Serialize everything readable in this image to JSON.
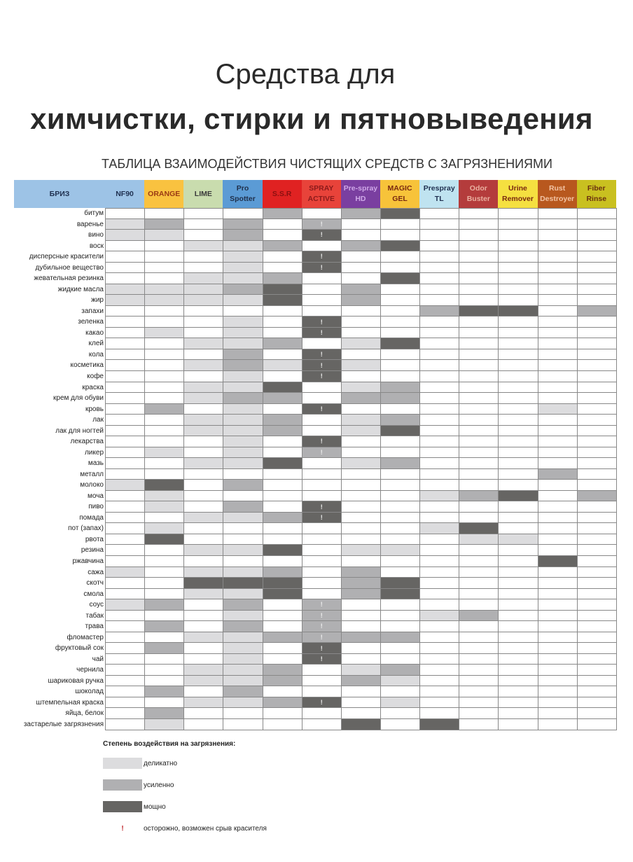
{
  "title_line1": "Средства для",
  "title_line2": "химчистки, стирки и пятновыведения",
  "subtitle": "ТАБЛИЦА ВЗАИМОДЕЙСТВИЯ ЧИСТЯЩИХ СРЕДСТВ С ЗАГРЯЗНЕНИЯМИ",
  "brand_header": "БРИЗ",
  "level_colors": {
    "0": "#ffffff",
    "1": "#dcdcde",
    "2": "#b0b0b2",
    "3": "#666563"
  },
  "warn_symbol": "!",
  "columns": [
    {
      "name": "NF90",
      "bg": "#9dc3e6",
      "fg": "#1f3050"
    },
    {
      "name": "ORANGE",
      "bg": "#f9c240",
      "fg": "#9a3a14"
    },
    {
      "name": "LIME",
      "bg": "#c9dcae",
      "fg": "#3a3a3a"
    },
    {
      "name": "Pro Spotter",
      "bg": "#5b9bd5",
      "fg": "#1f2f4a"
    },
    {
      "name": "S.S.R",
      "bg": "#e02222",
      "fg": "#8a1010"
    },
    {
      "name": "SPRAY ACTIVE",
      "bg": "#e8433a",
      "fg": "#8b1a1a"
    },
    {
      "name": "Pre-spray HD",
      "bg": "#7a3fa0",
      "fg": "#cfa8e8"
    },
    {
      "name": "MAGIC GEL",
      "bg": "#f7c33a",
      "fg": "#7a2a10"
    },
    {
      "name": "Prespray TL",
      "bg": "#bfe3f0",
      "fg": "#1f3050"
    },
    {
      "name": "Odor Buster",
      "bg": "#b43c3c",
      "fg": "#eab0a0"
    },
    {
      "name": "Urine Remover",
      "bg": "#f5e040",
      "fg": "#7a2a10"
    },
    {
      "name": "Rust Destroyer",
      "bg": "#b8581e",
      "fg": "#f3c4a4"
    },
    {
      "name": "Fiber Rinse",
      "bg": "#c9c020",
      "fg": "#6a3010"
    }
  ],
  "rows": [
    {
      "name": "битум",
      "levels": [
        0,
        0,
        0,
        0,
        2,
        0,
        2,
        3,
        0,
        0,
        0,
        0,
        0
      ],
      "warn": false
    },
    {
      "name": "варенье",
      "levels": [
        1,
        2,
        0,
        2,
        0,
        2,
        0,
        0,
        0,
        0,
        0,
        0,
        0
      ],
      "warn": true
    },
    {
      "name": "вино",
      "levels": [
        1,
        1,
        0,
        2,
        0,
        3,
        0,
        0,
        0,
        0,
        0,
        0,
        0
      ],
      "warn": true
    },
    {
      "name": "воск",
      "levels": [
        0,
        0,
        1,
        1,
        2,
        0,
        2,
        3,
        0,
        0,
        0,
        0,
        0
      ],
      "warn": false
    },
    {
      "name": "дисперсные красители",
      "levels": [
        0,
        0,
        0,
        1,
        0,
        3,
        0,
        0,
        0,
        0,
        0,
        0,
        0
      ],
      "warn": true
    },
    {
      "name": "дубильное вещество",
      "levels": [
        0,
        0,
        0,
        1,
        0,
        3,
        0,
        0,
        0,
        0,
        0,
        0,
        0
      ],
      "warn": true
    },
    {
      "name": "жевательная резинка",
      "levels": [
        0,
        0,
        1,
        1,
        2,
        0,
        0,
        3,
        0,
        0,
        0,
        0,
        0
      ],
      "warn": false
    },
    {
      "name": "жидкие масла",
      "levels": [
        1,
        1,
        1,
        2,
        3,
        0,
        2,
        0,
        0,
        0,
        0,
        0,
        0
      ],
      "warn": false
    },
    {
      "name": "жир",
      "levels": [
        1,
        1,
        1,
        1,
        3,
        0,
        2,
        0,
        0,
        0,
        0,
        0,
        0
      ],
      "warn": false
    },
    {
      "name": "запахи",
      "levels": [
        0,
        0,
        0,
        0,
        0,
        0,
        0,
        0,
        2,
        3,
        3,
        0,
        2
      ],
      "warn": false
    },
    {
      "name": "зеленка",
      "levels": [
        0,
        0,
        0,
        1,
        0,
        3,
        0,
        0,
        0,
        0,
        0,
        0,
        0
      ],
      "warn": true
    },
    {
      "name": "какао",
      "levels": [
        0,
        1,
        0,
        1,
        0,
        3,
        0,
        0,
        0,
        0,
        0,
        0,
        0
      ],
      "warn": true
    },
    {
      "name": "клей",
      "levels": [
        0,
        0,
        1,
        1,
        2,
        0,
        1,
        3,
        0,
        0,
        0,
        0,
        0
      ],
      "warn": false
    },
    {
      "name": "кола",
      "levels": [
        0,
        0,
        0,
        2,
        0,
        3,
        0,
        0,
        0,
        0,
        0,
        0,
        0
      ],
      "warn": true
    },
    {
      "name": "косметика",
      "levels": [
        0,
        0,
        1,
        2,
        1,
        3,
        1,
        0,
        0,
        0,
        0,
        0,
        0
      ],
      "warn": true
    },
    {
      "name": "кофе",
      "levels": [
        0,
        0,
        0,
        1,
        0,
        3,
        0,
        0,
        0,
        0,
        0,
        0,
        0
      ],
      "warn": true
    },
    {
      "name": "краска",
      "levels": [
        0,
        0,
        1,
        1,
        3,
        0,
        1,
        2,
        0,
        0,
        0,
        0,
        0
      ],
      "warn": false
    },
    {
      "name": "крем для обуви",
      "levels": [
        0,
        0,
        1,
        2,
        2,
        0,
        2,
        2,
        0,
        0,
        0,
        0,
        0
      ],
      "warn": false
    },
    {
      "name": "кровь",
      "levels": [
        0,
        2,
        0,
        1,
        0,
        3,
        0,
        0,
        0,
        0,
        0,
        1,
        0
      ],
      "warn": true
    },
    {
      "name": "лак",
      "levels": [
        0,
        0,
        1,
        1,
        2,
        0,
        1,
        2,
        0,
        0,
        0,
        0,
        0
      ],
      "warn": false
    },
    {
      "name": "лак для ногтей",
      "levels": [
        0,
        0,
        1,
        1,
        2,
        0,
        1,
        3,
        0,
        0,
        0,
        0,
        0
      ],
      "warn": false
    },
    {
      "name": "лекарства",
      "levels": [
        0,
        0,
        0,
        1,
        0,
        3,
        0,
        0,
        0,
        0,
        0,
        0,
        0
      ],
      "warn": true
    },
    {
      "name": "ликер",
      "levels": [
        0,
        1,
        0,
        1,
        0,
        2,
        0,
        0,
        0,
        0,
        0,
        0,
        0
      ],
      "warn": true
    },
    {
      "name": "мазь",
      "levels": [
        0,
        0,
        1,
        1,
        3,
        0,
        1,
        2,
        0,
        0,
        0,
        0,
        0
      ],
      "warn": false
    },
    {
      "name": "металл",
      "levels": [
        0,
        0,
        0,
        0,
        0,
        0,
        0,
        0,
        0,
        0,
        0,
        2,
        0
      ],
      "warn": false
    },
    {
      "name": "молоко",
      "levels": [
        1,
        3,
        0,
        2,
        0,
        0,
        0,
        0,
        0,
        0,
        0,
        0,
        0
      ],
      "warn": false
    },
    {
      "name": "моча",
      "levels": [
        0,
        1,
        0,
        0,
        0,
        0,
        0,
        0,
        1,
        2,
        3,
        0,
        2
      ],
      "warn": false
    },
    {
      "name": "пиво",
      "levels": [
        0,
        1,
        0,
        2,
        0,
        3,
        0,
        0,
        0,
        0,
        0,
        0,
        0
      ],
      "warn": true
    },
    {
      "name": "помада",
      "levels": [
        0,
        0,
        1,
        1,
        2,
        3,
        0,
        0,
        0,
        0,
        0,
        0,
        0
      ],
      "warn": true
    },
    {
      "name": "пот (запах)",
      "levels": [
        0,
        1,
        0,
        0,
        0,
        0,
        0,
        0,
        1,
        3,
        0,
        0,
        0
      ],
      "warn": false
    },
    {
      "name": "рвота",
      "levels": [
        0,
        3,
        0,
        0,
        0,
        0,
        0,
        0,
        0,
        1,
        1,
        0,
        0
      ],
      "warn": false
    },
    {
      "name": "резина",
      "levels": [
        0,
        0,
        1,
        1,
        3,
        0,
        1,
        1,
        0,
        0,
        0,
        0,
        0
      ],
      "warn": false
    },
    {
      "name": "ржавчина",
      "levels": [
        0,
        0,
        0,
        0,
        0,
        0,
        0,
        0,
        0,
        0,
        0,
        3,
        0
      ],
      "warn": false
    },
    {
      "name": "сажа",
      "levels": [
        1,
        0,
        1,
        1,
        2,
        0,
        2,
        0,
        0,
        0,
        0,
        0,
        0
      ],
      "warn": false
    },
    {
      "name": "скотч",
      "levels": [
        0,
        0,
        3,
        3,
        3,
        0,
        2,
        3,
        0,
        0,
        0,
        0,
        0
      ],
      "warn": false
    },
    {
      "name": "смола",
      "levels": [
        0,
        0,
        1,
        1,
        3,
        0,
        2,
        3,
        0,
        0,
        0,
        0,
        0
      ],
      "warn": false
    },
    {
      "name": "соус",
      "levels": [
        1,
        2,
        0,
        2,
        0,
        2,
        0,
        0,
        0,
        0,
        0,
        0,
        0
      ],
      "warn": true
    },
    {
      "name": "табак",
      "levels": [
        0,
        0,
        0,
        1,
        0,
        2,
        0,
        0,
        1,
        2,
        0,
        0,
        0
      ],
      "warn": true
    },
    {
      "name": "трава",
      "levels": [
        0,
        2,
        0,
        2,
        0,
        2,
        0,
        0,
        0,
        0,
        0,
        0,
        0
      ],
      "warn": true
    },
    {
      "name": "фломастер",
      "levels": [
        0,
        0,
        1,
        1,
        2,
        2,
        2,
        2,
        0,
        0,
        0,
        0,
        0
      ],
      "warn": true
    },
    {
      "name": "фруктовый сок",
      "levels": [
        0,
        2,
        0,
        1,
        0,
        3,
        0,
        0,
        0,
        0,
        0,
        0,
        0
      ],
      "warn": true
    },
    {
      "name": "чай",
      "levels": [
        0,
        0,
        0,
        1,
        0,
        3,
        0,
        0,
        0,
        0,
        0,
        0,
        0
      ],
      "warn": true
    },
    {
      "name": "чернила",
      "levels": [
        0,
        0,
        1,
        1,
        2,
        0,
        1,
        2,
        0,
        0,
        0,
        0,
        0
      ],
      "warn": false
    },
    {
      "name": "шариковая ручка",
      "levels": [
        0,
        0,
        1,
        1,
        2,
        0,
        2,
        1,
        0,
        0,
        0,
        0,
        0
      ],
      "warn": false
    },
    {
      "name": "шоколад",
      "levels": [
        0,
        2,
        0,
        2,
        0,
        0,
        0,
        0,
        0,
        0,
        0,
        0,
        0
      ],
      "warn": false
    },
    {
      "name": "штемпельная краска",
      "levels": [
        0,
        0,
        1,
        1,
        2,
        3,
        0,
        1,
        0,
        0,
        0,
        0,
        0
      ],
      "warn": true
    },
    {
      "name": "яйца, белок",
      "levels": [
        0,
        2,
        0,
        0,
        0,
        0,
        0,
        0,
        0,
        0,
        0,
        0,
        0
      ],
      "warn": false
    },
    {
      "name": "застарелые загрязнения",
      "levels": [
        0,
        1,
        0,
        0,
        0,
        0,
        3,
        0,
        3,
        0,
        0,
        0,
        0
      ],
      "warn": false
    }
  ],
  "legend": {
    "title": "Степень воздействия на загрязнения:",
    "items": [
      {
        "level": 1,
        "label": "деликатно"
      },
      {
        "level": 2,
        "label": "усиленно"
      },
      {
        "level": 3,
        "label": "мощно"
      }
    ],
    "warn_label": "осторожно, возможен срыв красителя"
  }
}
